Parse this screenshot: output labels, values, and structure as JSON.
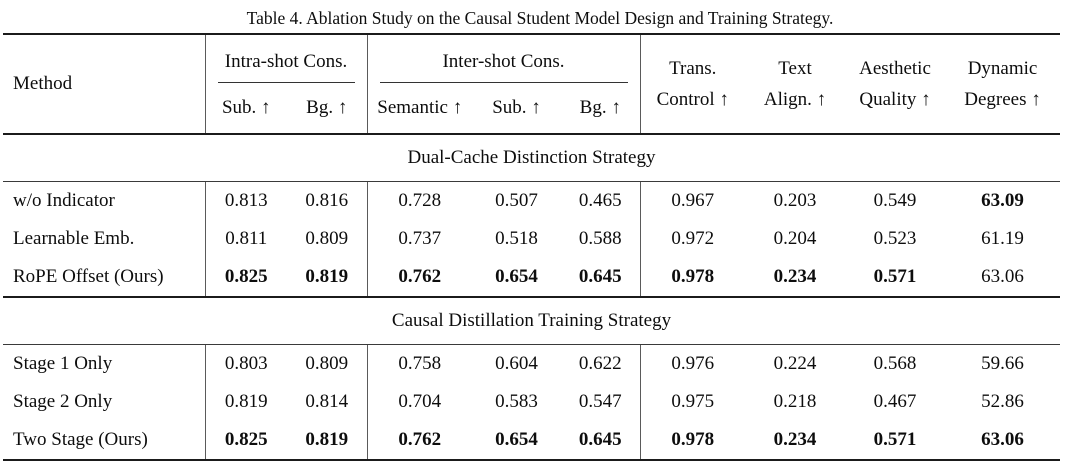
{
  "caption": "Table 4. Ablation Study on the Causal Student Model Design and Training Strategy.",
  "header": {
    "method": "Method",
    "groups": [
      {
        "label": "Intra-shot Cons.",
        "cols": [
          "Sub. ↑",
          "Bg. ↑"
        ]
      },
      {
        "label": "Inter-shot Cons.",
        "cols": [
          "Semantic ↑",
          "Sub. ↑",
          "Bg. ↑"
        ]
      }
    ],
    "single_cols": [
      {
        "line1": "Trans.",
        "line2": "Control ↑"
      },
      {
        "line1": "Text",
        "line2": "Align. ↑"
      },
      {
        "line1": "Aesthetic",
        "line2": "Quality ↑"
      },
      {
        "line1": "Dynamic",
        "line2": "Degrees ↑"
      }
    ]
  },
  "sections": [
    {
      "title": "Dual-Cache Distinction Strategy",
      "rows": [
        {
          "method": "w/o Indicator",
          "values": [
            "0.813",
            "0.816",
            "0.728",
            "0.507",
            "0.465",
            "0.967",
            "0.203",
            "0.549",
            "63.09"
          ],
          "bold": [
            false,
            false,
            false,
            false,
            false,
            false,
            false,
            false,
            true
          ]
        },
        {
          "method": "Learnable Emb.",
          "values": [
            "0.811",
            "0.809",
            "0.737",
            "0.518",
            "0.588",
            "0.972",
            "0.204",
            "0.523",
            "61.19"
          ],
          "bold": [
            false,
            false,
            false,
            false,
            false,
            false,
            false,
            false,
            false
          ]
        },
        {
          "method": "RoPE Offset (Ours)",
          "values": [
            "0.825",
            "0.819",
            "0.762",
            "0.654",
            "0.645",
            "0.978",
            "0.234",
            "0.571",
            "63.06"
          ],
          "bold": [
            true,
            true,
            true,
            true,
            true,
            true,
            true,
            true,
            false
          ]
        }
      ]
    },
    {
      "title": "Causal Distillation Training Strategy",
      "rows": [
        {
          "method": "Stage 1 Only",
          "values": [
            "0.803",
            "0.809",
            "0.758",
            "0.604",
            "0.622",
            "0.976",
            "0.224",
            "0.568",
            "59.66"
          ],
          "bold": [
            false,
            false,
            false,
            false,
            false,
            false,
            false,
            false,
            false
          ]
        },
        {
          "method": "Stage 2 Only",
          "values": [
            "0.819",
            "0.814",
            "0.704",
            "0.583",
            "0.547",
            "0.975",
            "0.218",
            "0.467",
            "52.86"
          ],
          "bold": [
            false,
            false,
            false,
            false,
            false,
            false,
            false,
            false,
            false
          ]
        },
        {
          "method": "Two Stage (Ours)",
          "values": [
            "0.825",
            "0.819",
            "0.762",
            "0.654",
            "0.645",
            "0.978",
            "0.234",
            "0.571",
            "63.06"
          ],
          "bold": [
            true,
            true,
            true,
            true,
            true,
            true,
            true,
            true,
            true
          ]
        }
      ]
    }
  ]
}
